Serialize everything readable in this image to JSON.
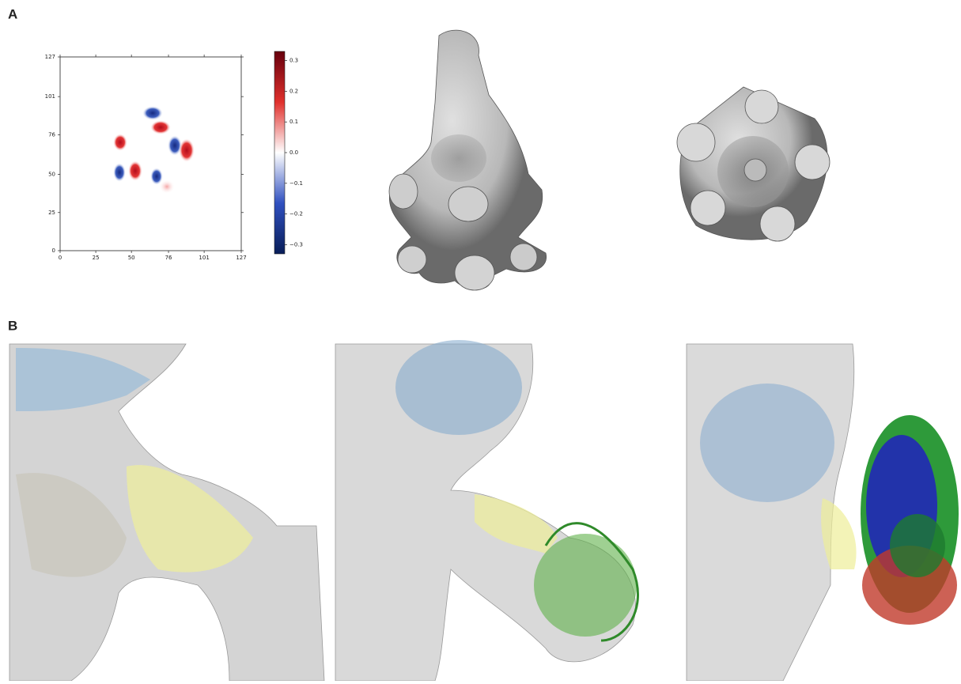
{
  "panels": [
    {
      "label": "A"
    },
    {
      "label": "B"
    }
  ],
  "heatmap": {
    "xlim": [
      0,
      127
    ],
    "ylim": [
      0,
      127
    ],
    "xticks": [
      0,
      25,
      50,
      76,
      101,
      127
    ],
    "yticks": [
      0,
      25,
      50,
      76,
      101,
      127
    ],
    "colorbar": {
      "lim": [
        -0.33,
        0.33
      ],
      "ticks": [
        {
          "value": 0.3,
          "label": "0.3"
        },
        {
          "value": 0.2,
          "label": "0.2"
        },
        {
          "value": 0.1,
          "label": "0.1"
        },
        {
          "value": 0,
          "label": "0.0"
        },
        {
          "value": -0.1,
          "label": "−0.1"
        },
        {
          "value": -0.2,
          "label": "−0.2"
        },
        {
          "value": -0.3,
          "label": "−0.3"
        }
      ]
    }
  }
}
